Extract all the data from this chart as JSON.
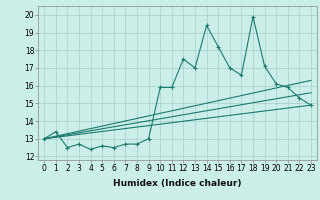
{
  "title": "",
  "xlabel": "Humidex (Indice chaleur)",
  "ylabel": "",
  "xlim": [
    -0.5,
    23.5
  ],
  "ylim": [
    11.8,
    20.5
  ],
  "yticks": [
    12,
    13,
    14,
    15,
    16,
    17,
    18,
    19,
    20
  ],
  "xticks": [
    0,
    1,
    2,
    3,
    4,
    5,
    6,
    7,
    8,
    9,
    10,
    11,
    12,
    13,
    14,
    15,
    16,
    17,
    18,
    19,
    20,
    21,
    22,
    23
  ],
  "background_color": "#cceee8",
  "grid_color": "#aad4ce",
  "line_color": "#1a7a6e",
  "series_main": {
    "x": [
      0,
      1,
      2,
      3,
      4,
      5,
      6,
      7,
      8,
      9,
      10,
      11,
      12,
      13,
      14,
      15,
      16,
      17,
      18,
      19,
      20,
      21,
      22,
      23
    ],
    "y": [
      13.0,
      13.4,
      12.5,
      12.7,
      12.4,
      12.6,
      12.5,
      12.7,
      12.7,
      13.0,
      15.9,
      15.9,
      17.5,
      17.0,
      19.4,
      18.2,
      17.0,
      16.6,
      19.9,
      17.1,
      16.1,
      15.9,
      15.3,
      14.9
    ]
  },
  "regression_lines": [
    {
      "x": [
        0,
        23
      ],
      "y": [
        13.0,
        14.9
      ]
    },
    {
      "x": [
        0,
        23
      ],
      "y": [
        13.0,
        15.6
      ]
    },
    {
      "x": [
        0,
        23
      ],
      "y": [
        13.0,
        16.3
      ]
    }
  ],
  "xlabel_fontsize": 6.5,
  "tick_fontsize": 5.5
}
